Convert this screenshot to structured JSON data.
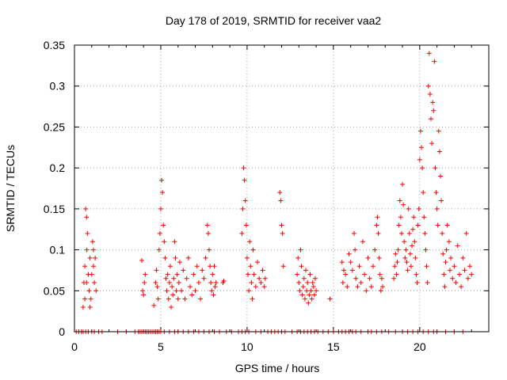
{
  "chart_data": {
    "type": "scatter",
    "title": "Day 178 of 2019, SRMTID for receiver vaa2",
    "xlabel": "GPS time / hours",
    "ylabel": "SRMTID / TECUs",
    "xlim": [
      0,
      24
    ],
    "ylim": [
      0,
      0.35
    ],
    "xticks": [
      0,
      5,
      10,
      15,
      20
    ],
    "xtick_labels": [
      "0",
      "5",
      "10",
      "15",
      "20"
    ],
    "yticks": [
      0,
      0.05,
      0.1,
      0.15,
      0.2,
      0.25,
      0.3,
      0.35
    ],
    "ytick_labels": [
      "0",
      "0.05",
      "0.1",
      "0.15",
      "0.2",
      "0.25",
      "0.3",
      "0.35"
    ],
    "grid": true,
    "marker": "plus",
    "color": "#ff0000",
    "series": [
      {
        "name": "vaa2",
        "points": [
          [
            0.5,
            0.03
          ],
          [
            0.55,
            0.06
          ],
          [
            0.6,
            0.08
          ],
          [
            0.65,
            0.15
          ],
          [
            0.7,
            0.14
          ],
          [
            0.72,
            0.1
          ],
          [
            0.75,
            0.12
          ],
          [
            0.8,
            0.07
          ],
          [
            0.85,
            0.05
          ],
          [
            0.9,
            0.09
          ],
          [
            0.95,
            0.04
          ],
          [
            1.0,
            0.07
          ],
          [
            1.05,
            0.11
          ],
          [
            1.1,
            0.08
          ],
          [
            1.15,
            0.06
          ],
          [
            1.2,
            0.09
          ],
          [
            1.25,
            0.05
          ],
          [
            0.6,
            0.04
          ],
          [
            0.7,
            0.06
          ],
          [
            0.9,
            0.03
          ],
          [
            1.1,
            0.1
          ],
          [
            3.9,
            0.087
          ],
          [
            3.95,
            0.05
          ],
          [
            4.0,
            0.045
          ],
          [
            4.05,
            0.06
          ],
          [
            4.1,
            0.07
          ],
          [
            4.6,
            0.032
          ],
          [
            4.7,
            0.06
          ],
          [
            4.75,
            0.075
          ],
          [
            4.8,
            0.055
          ],
          [
            4.85,
            0.04
          ],
          [
            4.9,
            0.1
          ],
          [
            4.95,
            0.12
          ],
          [
            5.0,
            0.15
          ],
          [
            5.05,
            0.185
          ],
          [
            5.1,
            0.17
          ],
          [
            5.15,
            0.13
          ],
          [
            5.2,
            0.11
          ],
          [
            5.25,
            0.09
          ],
          [
            5.3,
            0.065
          ],
          [
            5.35,
            0.05
          ],
          [
            5.4,
            0.07
          ],
          [
            5.45,
            0.04
          ],
          [
            5.5,
            0.06
          ],
          [
            5.55,
            0.08
          ],
          [
            5.6,
            0.03
          ],
          [
            5.65,
            0.055
          ],
          [
            5.7,
            0.045
          ],
          [
            5.75,
            0.065
          ],
          [
            5.8,
            0.11
          ],
          [
            5.85,
            0.09
          ],
          [
            5.9,
            0.05
          ],
          [
            5.95,
            0.07
          ],
          [
            6.0,
            0.04
          ],
          [
            6.05,
            0.06
          ],
          [
            6.1,
            0.085
          ],
          [
            6.2,
            0.05
          ],
          [
            6.3,
            0.075
          ],
          [
            6.4,
            0.04
          ],
          [
            6.5,
            0.065
          ],
          [
            6.6,
            0.09
          ],
          [
            6.7,
            0.055
          ],
          [
            6.8,
            0.045
          ],
          [
            6.9,
            0.07
          ],
          [
            7.0,
            0.05
          ],
          [
            7.1,
            0.08
          ],
          [
            7.2,
            0.06
          ],
          [
            7.3,
            0.04
          ],
          [
            7.4,
            0.075
          ],
          [
            7.5,
            0.065
          ],
          [
            7.6,
            0.09
          ],
          [
            7.7,
            0.13
          ],
          [
            7.75,
            0.12
          ],
          [
            7.8,
            0.1
          ],
          [
            7.85,
            0.08
          ],
          [
            7.9,
            0.06
          ],
          [
            7.95,
            0.05
          ],
          [
            8.0,
            0.07
          ],
          [
            8.05,
            0.045
          ],
          [
            8.1,
            0.08
          ],
          [
            8.15,
            0.055
          ],
          [
            8.2,
            0.06
          ],
          [
            8.6,
            0.06
          ],
          [
            8.65,
            0.062
          ],
          [
            9.7,
            0.12
          ],
          [
            9.75,
            0.15
          ],
          [
            9.8,
            0.2
          ],
          [
            9.85,
            0.185
          ],
          [
            9.9,
            0.16
          ],
          [
            9.95,
            0.13
          ],
          [
            10.0,
            0.09
          ],
          [
            10.05,
            0.07
          ],
          [
            10.1,
            0.05
          ],
          [
            10.15,
            0.11
          ],
          [
            10.2,
            0.08
          ],
          [
            10.25,
            0.06
          ],
          [
            10.3,
            0.04
          ],
          [
            10.35,
            0.1
          ],
          [
            10.4,
            0.07
          ],
          [
            10.5,
            0.055
          ],
          [
            10.6,
            0.085
          ],
          [
            10.7,
            0.065
          ],
          [
            10.8,
            0.06
          ],
          [
            10.9,
            0.075
          ],
          [
            11.0,
            0.055
          ],
          [
            11.05,
            0.065
          ],
          [
            11.9,
            0.17
          ],
          [
            11.95,
            0.16
          ],
          [
            12.0,
            0.13
          ],
          [
            12.05,
            0.12
          ],
          [
            12.1,
            0.08
          ],
          [
            12.9,
            0.07
          ],
          [
            12.95,
            0.09
          ],
          [
            13.0,
            0.06
          ],
          [
            13.05,
            0.05
          ],
          [
            13.1,
            0.1
          ],
          [
            13.15,
            0.08
          ],
          [
            13.2,
            0.045
          ],
          [
            13.25,
            0.055
          ],
          [
            13.3,
            0.065
          ],
          [
            13.35,
            0.04
          ],
          [
            13.4,
            0.075
          ],
          [
            13.45,
            0.05
          ],
          [
            13.5,
            0.06
          ],
          [
            13.55,
            0.035
          ],
          [
            13.6,
            0.045
          ],
          [
            13.65,
            0.07
          ],
          [
            13.7,
            0.05
          ],
          [
            13.75,
            0.04
          ],
          [
            13.8,
            0.06
          ],
          [
            13.85,
            0.055
          ],
          [
            13.9,
            0.045
          ],
          [
            13.95,
            0.065
          ],
          [
            14.0,
            0.05
          ],
          [
            14.8,
            0.04
          ],
          [
            15.5,
            0.085
          ],
          [
            15.55,
            0.06
          ],
          [
            15.6,
            0.075
          ],
          [
            15.7,
            0.07
          ],
          [
            15.8,
            0.055
          ],
          [
            15.9,
            0.095
          ],
          [
            16.0,
            0.085
          ],
          [
            16.1,
            0.075
          ],
          [
            16.2,
            0.12
          ],
          [
            16.25,
            0.1
          ],
          [
            16.3,
            0.065
          ],
          [
            16.4,
            0.055
          ],
          [
            16.5,
            0.08
          ],
          [
            16.6,
            0.06
          ],
          [
            16.7,
            0.11
          ],
          [
            16.8,
            0.07
          ],
          [
            16.9,
            0.05
          ],
          [
            17.0,
            0.09
          ],
          [
            17.1,
            0.065
          ],
          [
            17.2,
            0.055
          ],
          [
            17.3,
            0.08
          ],
          [
            17.4,
            0.1
          ],
          [
            17.5,
            0.13
          ],
          [
            17.55,
            0.14
          ],
          [
            17.6,
            0.12
          ],
          [
            17.65,
            0.09
          ],
          [
            17.7,
            0.07
          ],
          [
            17.75,
            0.05
          ],
          [
            17.8,
            0.065
          ],
          [
            17.85,
            0.055
          ],
          [
            18.5,
            0.065
          ],
          [
            18.55,
            0.08
          ],
          [
            18.6,
            0.095
          ],
          [
            18.65,
            0.07
          ],
          [
            18.7,
            0.085
          ],
          [
            18.75,
            0.1
          ],
          [
            18.8,
            0.13
          ],
          [
            18.85,
            0.16
          ],
          [
            18.9,
            0.14
          ],
          [
            18.95,
            0.12
          ],
          [
            19.0,
            0.18
          ],
          [
            19.05,
            0.155
          ],
          [
            19.1,
            0.11
          ],
          [
            19.15,
            0.09
          ],
          [
            19.2,
            0.1
          ],
          [
            19.25,
            0.085
          ],
          [
            19.3,
            0.075
          ],
          [
            19.35,
            0.15
          ],
          [
            19.4,
            0.12
          ],
          [
            19.45,
            0.095
          ],
          [
            19.5,
            0.08
          ],
          [
            19.55,
            0.105
          ],
          [
            19.6,
            0.125
          ],
          [
            19.65,
            0.14
          ],
          [
            19.7,
            0.11
          ],
          [
            19.75,
            0.09
          ],
          [
            19.8,
            0.07
          ],
          [
            19.85,
            0.06
          ],
          [
            19.9,
            0.13
          ],
          [
            19.95,
            0.15
          ],
          [
            20.0,
            0.21
          ],
          [
            20.05,
            0.245
          ],
          [
            20.1,
            0.225
          ],
          [
            20.15,
            0.2
          ],
          [
            20.2,
            0.17
          ],
          [
            20.25,
            0.14
          ],
          [
            20.3,
            0.12
          ],
          [
            20.35,
            0.1
          ],
          [
            20.4,
            0.08
          ],
          [
            20.45,
            0.06
          ],
          [
            20.5,
            0.3
          ],
          [
            20.55,
            0.34
          ],
          [
            20.6,
            0.29
          ],
          [
            20.65,
            0.26
          ],
          [
            20.7,
            0.23
          ],
          [
            20.75,
            0.28
          ],
          [
            20.8,
            0.27
          ],
          [
            20.85,
            0.33
          ],
          [
            20.9,
            0.2
          ],
          [
            20.95,
            0.17
          ],
          [
            21.0,
            0.15
          ],
          [
            21.05,
            0.13
          ],
          [
            21.1,
            0.245
          ],
          [
            21.15,
            0.22
          ],
          [
            21.2,
            0.19
          ],
          [
            21.25,
            0.16
          ],
          [
            21.3,
            0.12
          ],
          [
            21.35,
            0.095
          ],
          [
            21.4,
            0.07
          ],
          [
            21.45,
            0.055
          ],
          [
            21.5,
            0.085
          ],
          [
            21.55,
            0.1
          ],
          [
            21.6,
            0.13
          ],
          [
            21.7,
            0.11
          ],
          [
            21.75,
            0.075
          ],
          [
            21.8,
            0.09
          ],
          [
            21.9,
            0.065
          ],
          [
            22.0,
            0.08
          ],
          [
            22.1,
            0.06
          ],
          [
            22.2,
            0.105
          ],
          [
            22.3,
            0.07
          ],
          [
            22.4,
            0.055
          ],
          [
            22.5,
            0.09
          ],
          [
            22.6,
            0.075
          ],
          [
            22.7,
            0.12
          ],
          [
            22.8,
            0.065
          ],
          [
            22.9,
            0.08
          ],
          [
            23.0,
            0.07
          ]
        ]
      }
    ],
    "zero_points_x": [
      0.1,
      0.25,
      0.4,
      0.5,
      0.65,
      0.8,
      1.0,
      1.15,
      1.4,
      1.6,
      2.5,
      3.0,
      3.5,
      3.7,
      3.8,
      3.9,
      4.0,
      4.1,
      4.2,
      4.3,
      4.4,
      4.5,
      4.6,
      4.7,
      4.8,
      4.9,
      5.0,
      5.2,
      5.5,
      5.8,
      6.0,
      6.3,
      6.6,
      6.9,
      7.2,
      7.5,
      7.8,
      8.1,
      8.4,
      8.8,
      9.1,
      9.5,
      9.7,
      9.9,
      10.1,
      10.5,
      10.8,
      11.2,
      11.4,
      11.6,
      11.8,
      12.0,
      12.2,
      12.6,
      12.9,
      13.1,
      13.3,
      13.5,
      13.7,
      13.9,
      14.1,
      14.4,
      14.7,
      15.0,
      15.3,
      15.5,
      15.7,
      15.9,
      16.1,
      16.3,
      16.6,
      17.0,
      17.2,
      17.5,
      17.8,
      18.2,
      18.6,
      19.0,
      19.3,
      19.6,
      19.9,
      20.2,
      20.5,
      20.8,
      21.0,
      21.5,
      22.0,
      22.5
    ]
  }
}
